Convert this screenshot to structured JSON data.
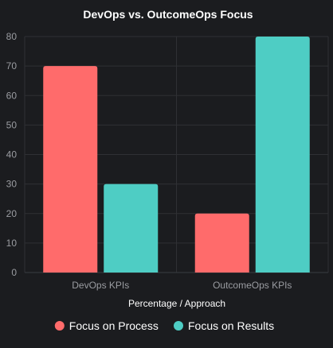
{
  "chart_data": {
    "type": "bar",
    "title": "DevOps vs. OutcomeOps Focus",
    "xlabel": "Percentage / Approach",
    "ylabel": "",
    "categories": [
      "DevOps KPIs",
      "OutcomeOps KPIs"
    ],
    "series": [
      {
        "name": "Focus on Process",
        "values": [
          70,
          20
        ],
        "color": "#ff6b6b"
      },
      {
        "name": "Focus on Results",
        "values": [
          30,
          80
        ],
        "color": "#4ecdc4"
      }
    ],
    "ylim": [
      0,
      80
    ],
    "yticks": [
      0,
      10,
      20,
      30,
      40,
      50,
      60,
      70,
      80
    ],
    "grid": true,
    "legend_position": "bottom",
    "colors": {
      "background": "#1b1c1f",
      "text": "#ffffff",
      "tick_text": "#9a9ca1",
      "grid": "#2f3034",
      "axis": "#3a3b40"
    }
  }
}
